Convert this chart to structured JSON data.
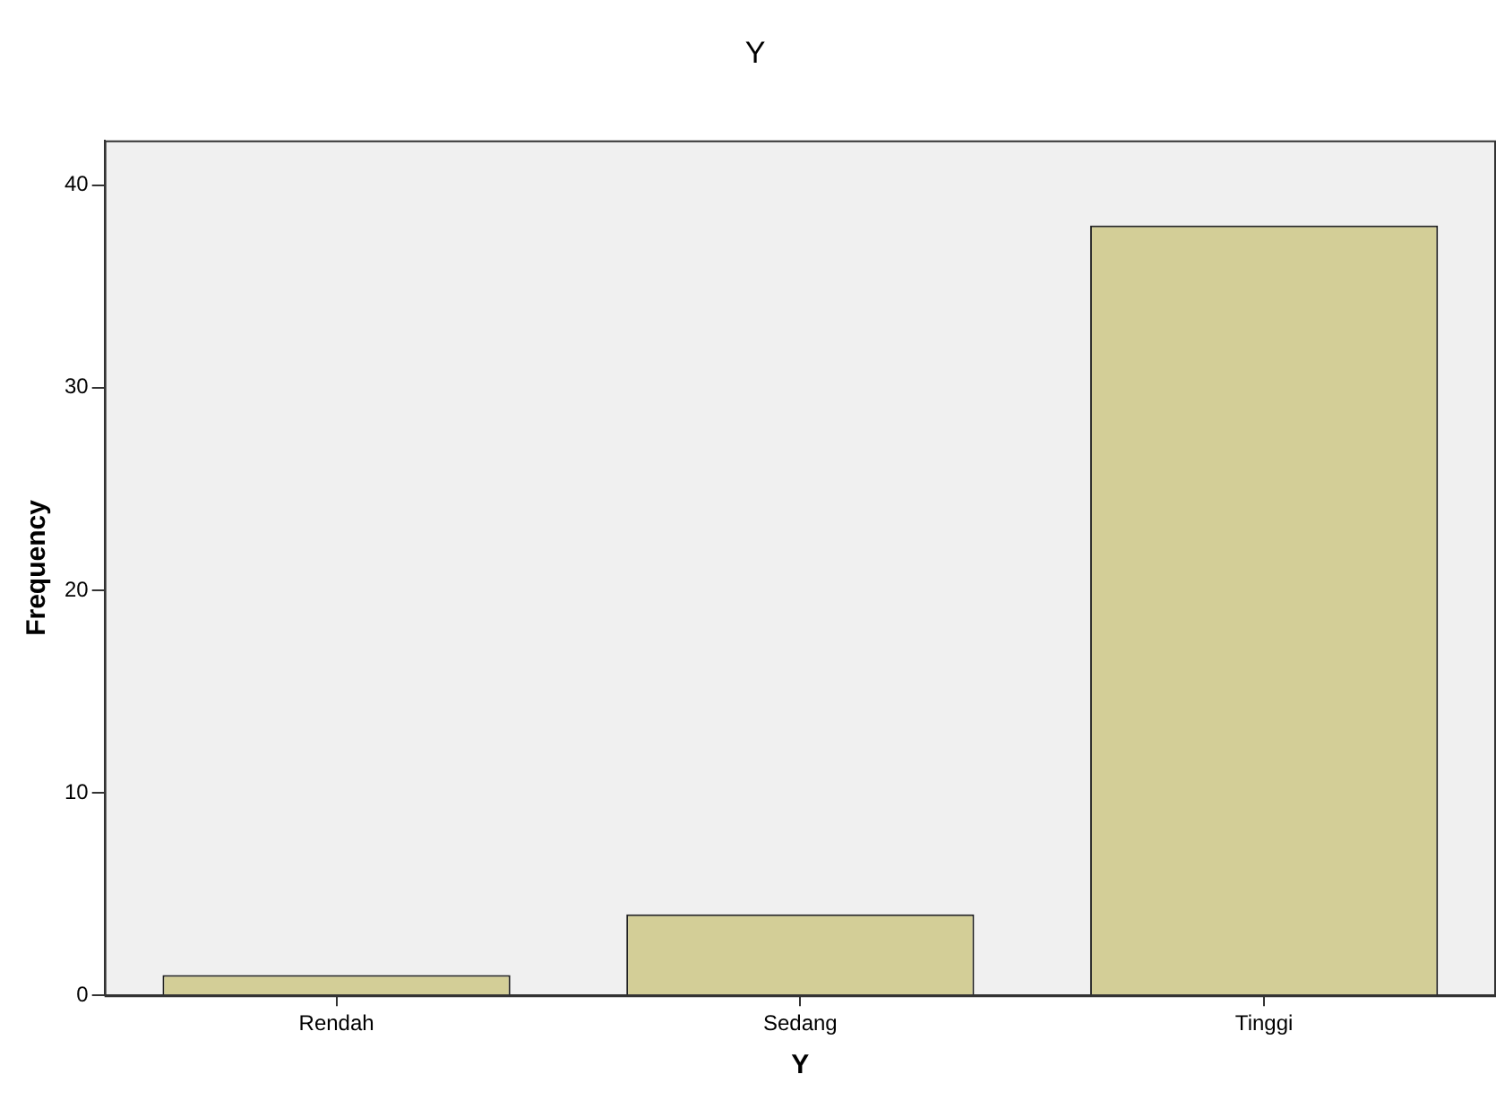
{
  "chart_data": {
    "type": "bar",
    "title": "Y",
    "xlabel": "Y",
    "ylabel": "Frequency",
    "categories": [
      "Rendah",
      "Sedang",
      "Tinggi"
    ],
    "values": [
      1,
      4,
      38
    ],
    "color": "#d3ce97",
    "ylim": [
      0,
      42.2
    ],
    "yticks": [
      0,
      10,
      20,
      30,
      40
    ],
    "grid": false,
    "legend": false
  }
}
